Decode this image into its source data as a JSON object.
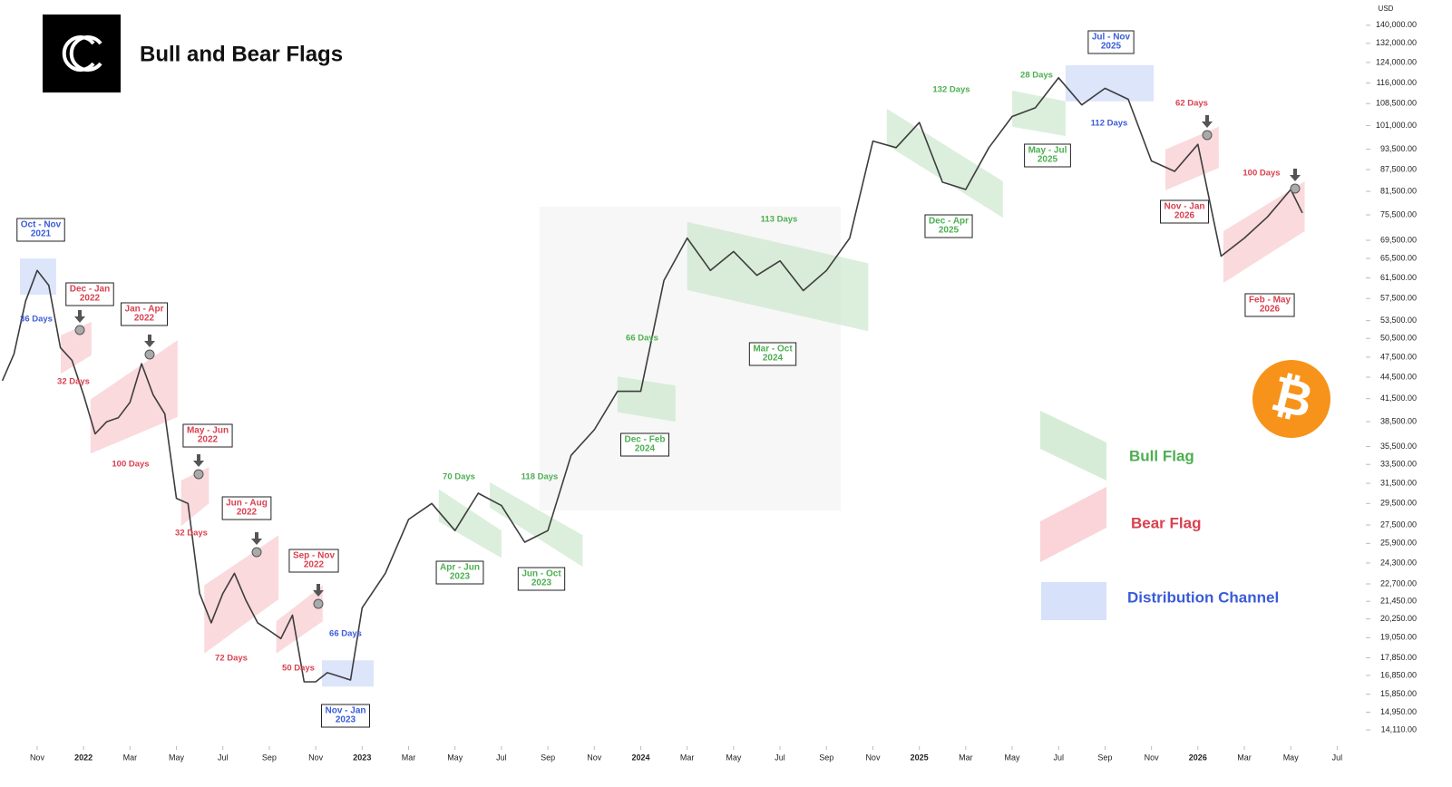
{
  "chart_data": {
    "type": "line",
    "title": "Bull and Bear Flags",
    "y_unit": "USD",
    "currency_symbol": "₿",
    "log_scale": true,
    "xlim": [
      -1.6,
      57
    ],
    "ylim": [
      13500,
      152000
    ],
    "xticks": [
      {
        "value": 0,
        "label": "Nov"
      },
      {
        "value": 2,
        "label": "2022"
      },
      {
        "value": 4,
        "label": "Mar"
      },
      {
        "value": 6,
        "label": "May"
      },
      {
        "value": 8,
        "label": "Jul"
      },
      {
        "value": 10,
        "label": "Sep"
      },
      {
        "value": 12,
        "label": "Nov"
      },
      {
        "value": 14,
        "label": "2023"
      },
      {
        "value": 16,
        "label": "Mar"
      },
      {
        "value": 18,
        "label": "May"
      },
      {
        "value": 20,
        "label": "Jul"
      },
      {
        "value": 22,
        "label": "Sep"
      },
      {
        "value": 24,
        "label": "Nov"
      },
      {
        "value": 26,
        "label": "2024"
      },
      {
        "value": 28,
        "label": "Mar"
      },
      {
        "value": 30,
        "label": "May"
      },
      {
        "value": 32,
        "label": "Jul"
      },
      {
        "value": 34,
        "label": "Sep"
      },
      {
        "value": 36,
        "label": "Nov"
      },
      {
        "value": 38,
        "label": "2025"
      },
      {
        "value": 40,
        "label": "Mar"
      },
      {
        "value": 42,
        "label": "May"
      },
      {
        "value": 44,
        "label": "Jul"
      },
      {
        "value": 46,
        "label": "Sep"
      },
      {
        "value": 48,
        "label": "Nov"
      },
      {
        "value": 50,
        "label": "2026"
      },
      {
        "value": 52,
        "label": "Mar"
      },
      {
        "value": 54,
        "label": "May"
      },
      {
        "value": 56,
        "label": "Jul"
      }
    ],
    "yticks": [
      {
        "value": 140000,
        "label": "140,000.00"
      },
      {
        "value": 132000,
        "label": "132,000.00"
      },
      {
        "value": 124000,
        "label": "124,000.00"
      },
      {
        "value": 116000,
        "label": "116,000.00"
      },
      {
        "value": 108500,
        "label": "108,500.00"
      },
      {
        "value": 101000,
        "label": "101,000.00"
      },
      {
        "value": 93500,
        "label": "93,500.00"
      },
      {
        "value": 87500,
        "label": "87,500.00"
      },
      {
        "value": 81500,
        "label": "81,500.00"
      },
      {
        "value": 75500,
        "label": "75,500.00"
      },
      {
        "value": 69500,
        "label": "69,500.00"
      },
      {
        "value": 65500,
        "label": "65,500.00"
      },
      {
        "value": 61500,
        "label": "61,500.00"
      },
      {
        "value": 57500,
        "label": "57,500.00"
      },
      {
        "value": 53500,
        "label": "53,500.00"
      },
      {
        "value": 50500,
        "label": "50,500.00"
      },
      {
        "value": 47500,
        "label": "47,500.00"
      },
      {
        "value": 44500,
        "label": "44,500.00"
      },
      {
        "value": 41500,
        "label": "41,500.00"
      },
      {
        "value": 38500,
        "label": "38,500.00"
      },
      {
        "value": 35500,
        "label": "35,500.00"
      },
      {
        "value": 33500,
        "label": "33,500.00"
      },
      {
        "value": 31500,
        "label": "31,500.00"
      },
      {
        "value": 29500,
        "label": "29,500.00"
      },
      {
        "value": 27500,
        "label": "27,500.00"
      },
      {
        "value": 25900,
        "label": "25,900.00"
      },
      {
        "value": 24300,
        "label": "24,300.00"
      },
      {
        "value": 22700,
        "label": "22,700.00"
      },
      {
        "value": 21450,
        "label": "21,450.00"
      },
      {
        "value": 20250,
        "label": "20,250.00"
      },
      {
        "value": 19050,
        "label": "19,050.00"
      },
      {
        "value": 17850,
        "label": "17,850.00"
      },
      {
        "value": 16850,
        "label": "16,850.00"
      },
      {
        "value": 15850,
        "label": "15,850.00"
      },
      {
        "value": 14950,
        "label": "14,950.00"
      },
      {
        "value": 14110,
        "label": "14,110.00"
      }
    ],
    "series": [
      {
        "color": "#3d3d3d",
        "x": [
          -1.5,
          -1,
          -0.5,
          0,
          0.5,
          1,
          1.5,
          2,
          2.5,
          3,
          3.5,
          4,
          4.5,
          5,
          5.5,
          6,
          6.5,
          7,
          7.5,
          8,
          8.5,
          9,
          9.5,
          10,
          10.5,
          11,
          11.5,
          12,
          12.5,
          13,
          13.5,
          14,
          15,
          16,
          17,
          18,
          19,
          20,
          21,
          22,
          23,
          24,
          25,
          26,
          27,
          28,
          29,
          30,
          31,
          32,
          33,
          34,
          35,
          36,
          37,
          38,
          39,
          40,
          41,
          42,
          43,
          44,
          45,
          46,
          47,
          48,
          49,
          50,
          51,
          52,
          53,
          54,
          54.5
        ],
        "values": [
          44000,
          48000,
          57000,
          63000,
          60000,
          49000,
          47000,
          42000,
          37000,
          38500,
          39000,
          41000,
          46500,
          42000,
          39500,
          30000,
          29500,
          22000,
          20000,
          22000,
          23500,
          21500,
          20000,
          19500,
          19000,
          20500,
          16500,
          16500,
          17000,
          16800,
          16600,
          21000,
          23500,
          28000,
          29500,
          27000,
          30500,
          29300,
          26000,
          27000,
          34500,
          37500,
          42500,
          42500,
          61000,
          70000,
          63000,
          67000,
          62000,
          65000,
          59000,
          63000,
          70000,
          96000,
          94000,
          102000,
          84000,
          82000,
          94000,
          104000,
          107000,
          118000,
          108000,
          114000,
          110000,
          90000,
          87000,
          95000,
          66000,
          70000,
          75000,
          82000,
          76000
        ]
      }
    ],
    "legend": [
      {
        "name": "Bull Flag",
        "fill": "#c8e6c9",
        "text_color": "#4caf50"
      },
      {
        "name": "Bear Flag",
        "fill": "#f8c6cb",
        "text_color": "#d9404f"
      },
      {
        "name": "Distribution Channel",
        "fill": "#c9d7f8",
        "text_color": "#3a5bd9"
      }
    ],
    "flags": [
      {
        "kind": 2,
        "label": "Oct - Nov",
        "year": "2021",
        "duration": "36 Days",
        "x": [
          -0.74,
          0.82
        ],
        "y_start": [
          58200,
          65500
        ],
        "y_end": [
          58200,
          65500
        ]
      },
      {
        "kind": 1,
        "label": "Dec - Jan",
        "year": "2022",
        "duration": "32 Days",
        "x": [
          1.02,
          2.34
        ],
        "y_start": [
          45000,
          51000
        ],
        "y_end": [
          47800,
          53300
        ]
      },
      {
        "kind": 1,
        "label": "Jan - Apr",
        "year": "2022",
        "duration": "100 Days",
        "x": [
          2.3,
          6.05
        ],
        "y_start": [
          34700,
          41400
        ],
        "y_end": [
          39100,
          50200
        ]
      },
      {
        "kind": 1,
        "label": "May - Jun",
        "year": "2022",
        "duration": "32 Days",
        "x": [
          6.2,
          7.4
        ],
        "y_start": [
          27400,
          31800
        ],
        "y_end": [
          29500,
          33200
        ]
      },
      {
        "kind": 1,
        "label": "Jun - Aug",
        "year": "2022",
        "duration": "72 Days",
        "x": [
          7.2,
          10.4
        ],
        "y_start": [
          18100,
          22600
        ],
        "y_end": [
          21600,
          26600
        ]
      },
      {
        "kind": 1,
        "label": "Sep - Nov",
        "year": "2022",
        "duration": "50 Days",
        "x": [
          10.3,
          12.3
        ],
        "y_start": [
          18100,
          20100
        ],
        "y_end": [
          20100,
          22600
        ]
      },
      {
        "kind": 2,
        "label": "Nov - Jan",
        "year": "2023",
        "duration": "66 Days",
        "x": [
          12.27,
          14.5
        ],
        "y_start": [
          16250,
          17700
        ],
        "y_end": [
          16250,
          17700
        ]
      },
      {
        "kind": 0,
        "label": "Apr - Jun",
        "year": "2023",
        "duration": "70 Days",
        "x": [
          17.3,
          20.0
        ],
        "y_start": [
          27800,
          30900
        ],
        "y_end": [
          24700,
          27000
        ]
      },
      {
        "kind": 0,
        "label": "Jun - Oct",
        "year": "2023",
        "duration": "118 Days",
        "x": [
          19.5,
          23.5
        ],
        "y_start": [
          29100,
          31600
        ],
        "y_end": [
          24000,
          26600
        ]
      },
      {
        "kind": 0,
        "label": "Dec - Feb",
        "year": "2024",
        "duration": "66 Days",
        "x": [
          25.0,
          27.5
        ],
        "y_start": [
          39700,
          44600
        ],
        "y_end": [
          38500,
          43300
        ]
      },
      {
        "kind": 0,
        "label": "Mar - Oct",
        "year": "2024",
        "duration": "113 Days",
        "x": [
          28.0,
          35.8
        ],
        "y_start": [
          59100,
          73800
        ],
        "y_end": [
          51700,
          64500
        ]
      },
      {
        "kind": 0,
        "label": "Dec - Apr",
        "year": "2025",
        "duration": "132 Days",
        "x": [
          36.6,
          41.6
        ],
        "y_start": [
          94800,
          106700
        ],
        "y_end": [
          74800,
          84200
        ]
      },
      {
        "kind": 0,
        "label": "May - Jul",
        "year": "2025",
        "duration": "28 Days",
        "x": [
          42.0,
          44.3
        ],
        "y_start": [
          100600,
          113200
        ],
        "y_end": [
          97600,
          109300
        ]
      },
      {
        "kind": 2,
        "label": "Jul - Nov",
        "year": "2025",
        "duration": "112 Days",
        "x": [
          44.3,
          48.1
        ],
        "y_start": [
          109300,
          122900
        ],
        "y_end": [
          109300,
          122900
        ]
      },
      {
        "kind": 1,
        "label": "Nov - Jan",
        "year": "2026",
        "duration": "62 Days",
        "x": [
          48.6,
          50.9
        ],
        "y_start": [
          81800,
          93400
        ],
        "y_end": [
          88000,
          100600
        ]
      },
      {
        "kind": 1,
        "label": "Feb - May",
        "year": "2026",
        "duration": "100 Days",
        "x": [
          51.1,
          54.6
        ],
        "y_start": [
          60500,
          71600
        ],
        "y_end": [
          71600,
          84200
        ]
      }
    ]
  }
}
